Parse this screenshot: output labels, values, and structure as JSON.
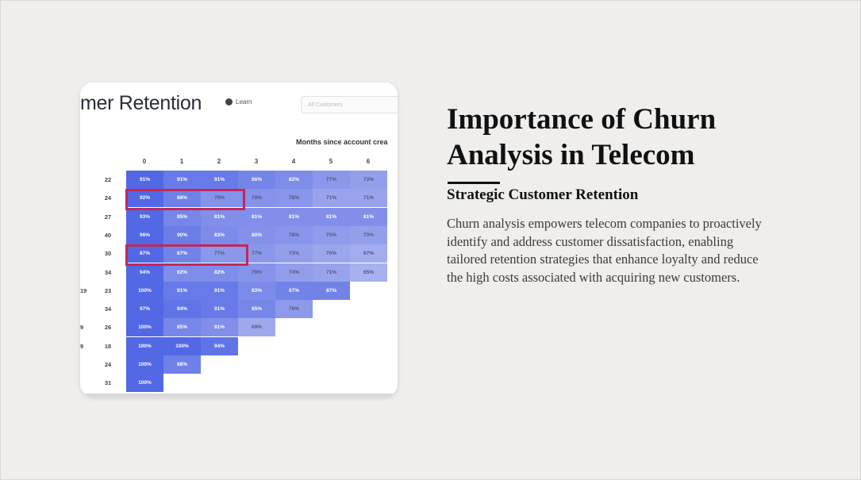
{
  "slide": {
    "title": "Importance of Churn Analysis in Telecom",
    "subtitle": "Strategic Customer Retention",
    "body": "Churn analysis empowers telecom companies to proactively identify and address customer dissatisfaction, enabling tailored retention strategies that enhance loyalty and reduce the high costs associated with acquiring new customers."
  },
  "image": {
    "title": "mer Retention",
    "learn_label": "Learn",
    "filter_placeholder": "All Customers",
    "months_label": "Months since account crea",
    "columns": [
      "0",
      "1",
      "2",
      "3",
      "4",
      "5",
      "6"
    ],
    "left_labels": [
      "",
      "",
      "",
      "",
      "",
      "",
      "19",
      "",
      "9",
      "9",
      "",
      ""
    ],
    "rows": [
      {
        "label": "22",
        "cells": [
          "91%",
          "91%",
          "91%",
          "86%",
          "82%",
          "77%",
          "73%"
        ]
      },
      {
        "label": "24",
        "cells": [
          "92%",
          "88%",
          "79%",
          "79%",
          "78%",
          "71%",
          "71%"
        ]
      },
      {
        "label": "27",
        "cells": [
          "93%",
          "85%",
          "81%",
          "81%",
          "81%",
          "81%",
          "81%"
        ]
      },
      {
        "label": "40",
        "cells": [
          "96%",
          "90%",
          "83%",
          "80%",
          "78%",
          "75%",
          "73%"
        ]
      },
      {
        "label": "30",
        "cells": [
          "87%",
          "87%",
          "77%",
          "77%",
          "73%",
          "70%",
          "67%"
        ]
      },
      {
        "label": "34",
        "cells": [
          "94%",
          "82%",
          "82%",
          "79%",
          "74%",
          "71%",
          "65%"
        ]
      },
      {
        "label": "23",
        "cells": [
          "100%",
          "91%",
          "91%",
          "83%",
          "87%",
          "87%"
        ]
      },
      {
        "label": "34",
        "cells": [
          "97%",
          "94%",
          "91%",
          "85%",
          "76%"
        ]
      },
      {
        "label": "26",
        "cells": [
          "100%",
          "85%",
          "81%",
          "69%"
        ]
      },
      {
        "label": "18",
        "cells": [
          "100%",
          "100%",
          "94%"
        ]
      },
      {
        "label": "24",
        "cells": [
          "100%",
          "88%"
        ]
      },
      {
        "label": "31",
        "cells": [
          "100%"
        ]
      }
    ]
  }
}
